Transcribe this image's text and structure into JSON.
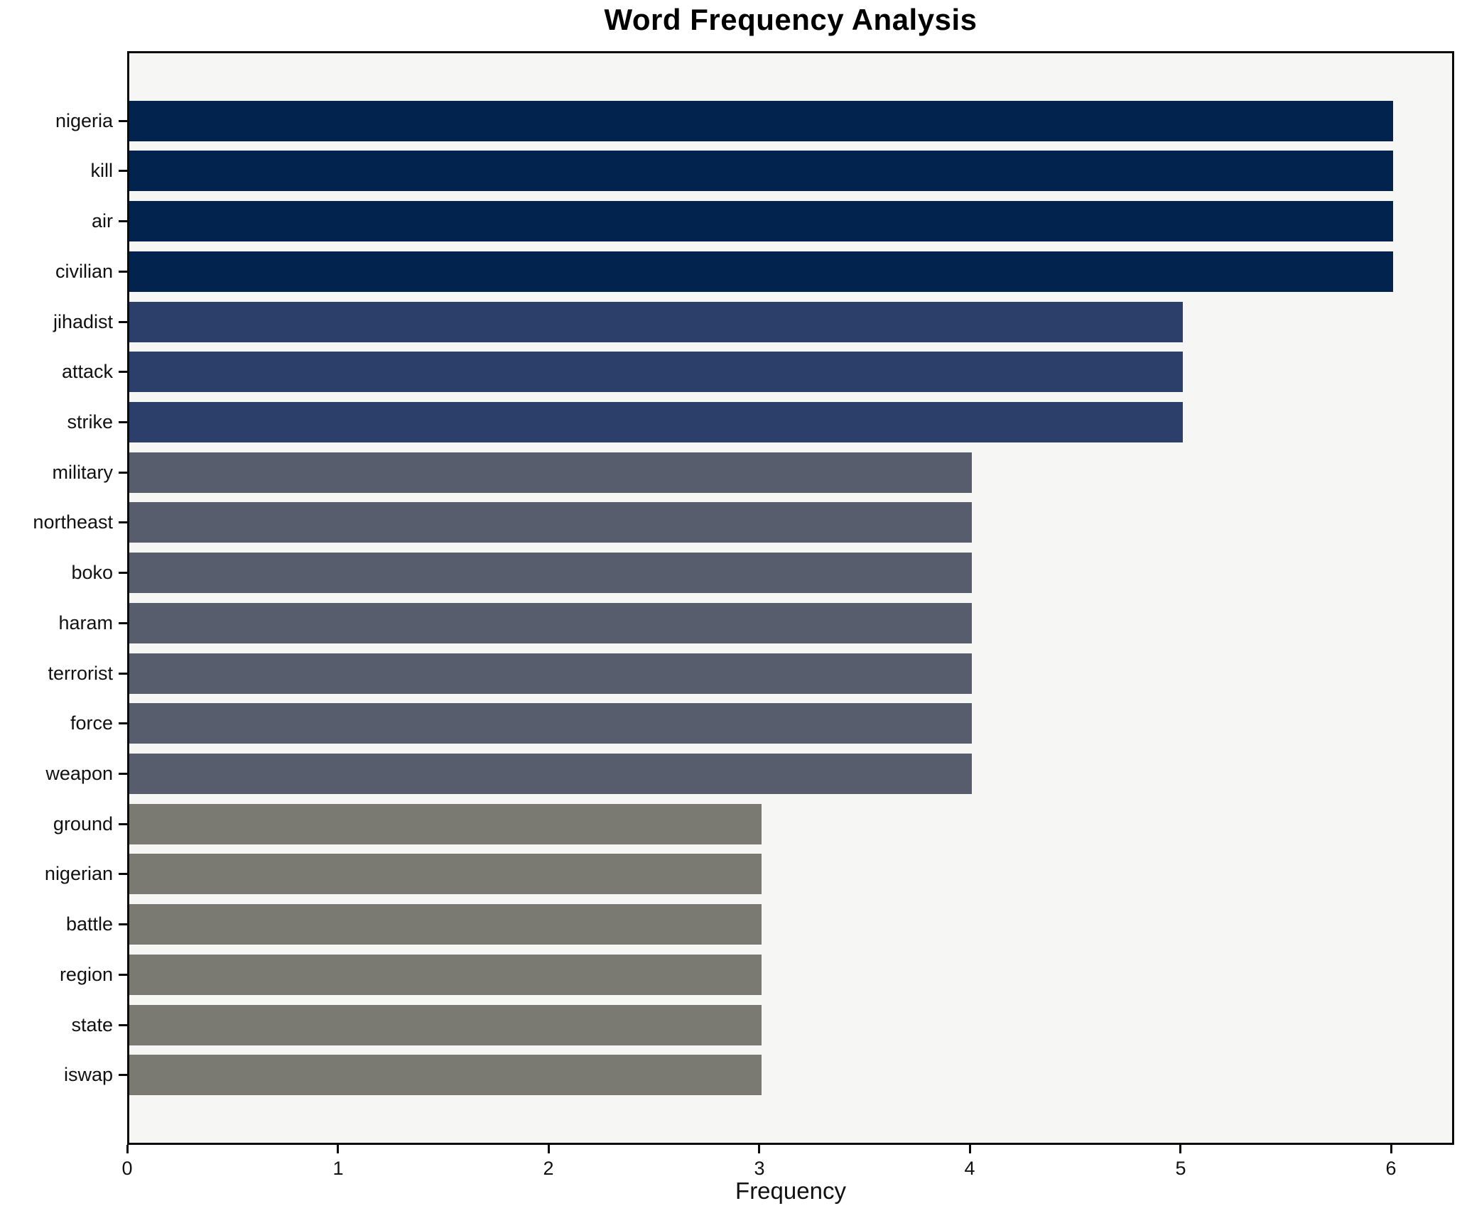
{
  "chart_data": {
    "type": "bar",
    "orientation": "horizontal",
    "title": "Word Frequency Analysis",
    "xlabel": "Frequency",
    "ylabel": "",
    "categories": [
      "nigeria",
      "kill",
      "air",
      "civilian",
      "jihadist",
      "attack",
      "strike",
      "military",
      "northeast",
      "boko",
      "haram",
      "terrorist",
      "force",
      "weapon",
      "ground",
      "nigerian",
      "battle",
      "region",
      "state",
      "iswap"
    ],
    "values": [
      6,
      6,
      6,
      6,
      5,
      5,
      5,
      4,
      4,
      4,
      4,
      4,
      4,
      4,
      3,
      3,
      3,
      3,
      3,
      3
    ],
    "xticks": [
      "0",
      "1",
      "2",
      "3",
      "4",
      "5",
      "6"
    ],
    "xlim": [
      0,
      6.3
    ],
    "grid": false,
    "legend_position": "none",
    "color_map": {
      "6": "#02234d",
      "5": "#2c3f6b",
      "4": "#575d6d",
      "3": "#7a7a73"
    },
    "plot_bg": "#f6f6f4",
    "figure_bg": "#ffffff",
    "spine_color": "#0a0a0a"
  }
}
